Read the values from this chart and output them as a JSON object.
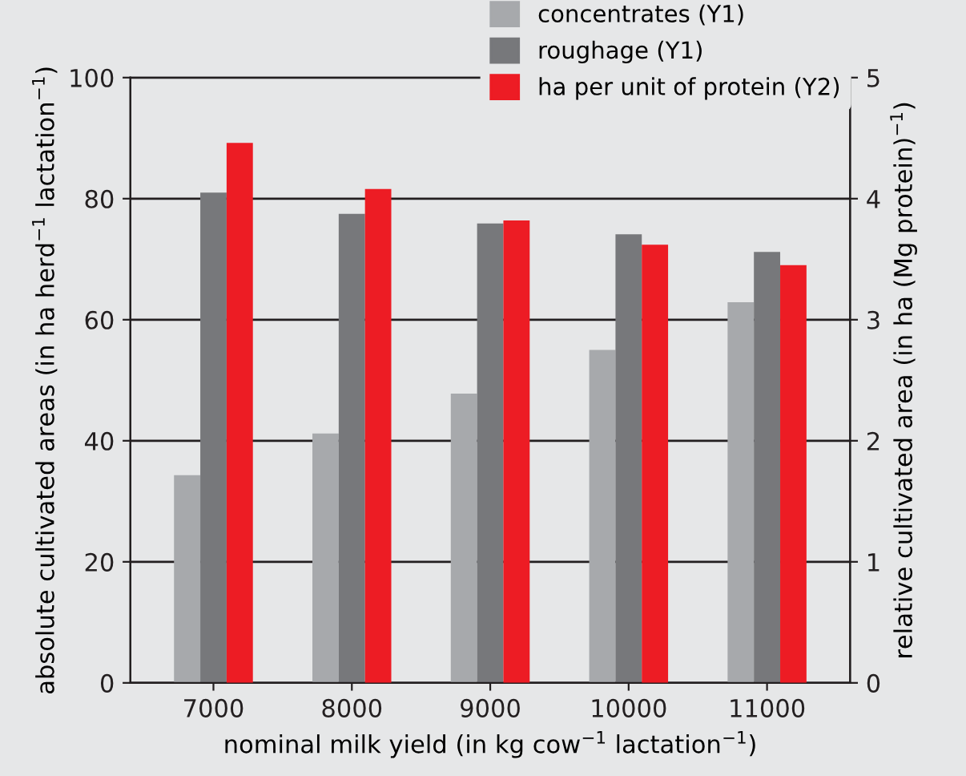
{
  "chart_data": {
    "type": "bar",
    "xlabel": "nominal milk yield (in kg cow$^{−1}$ lactation$^{−1}$)",
    "ylabel": "absolute cultivated areas (in ha herd$^{−1}$ lactation$^{−1}$)",
    "y2label": "relative cultivated area (in ha (Mg protein)$^{−1}$)",
    "categories": [
      "7000",
      "8000",
      "9000",
      "10000",
      "11000"
    ],
    "series": [
      {
        "name": "concentrates (Y1)",
        "color": "#a7a9ac",
        "values": [
          34.3,
          41.2,
          47.8,
          55.0,
          62.9
        ]
      },
      {
        "name": "roughage (Y1)",
        "color": "#77787b",
        "values": [
          81.0,
          77.5,
          75.9,
          74.1,
          71.2
        ]
      },
      {
        "name": "ha per unit of protein (Y2)",
        "color": "#ed1c24",
        "values": [
          4.46,
          4.08,
          3.82,
          3.62,
          3.45
        ],
        "axis": "y2"
      }
    ],
    "ylim": [
      0,
      100
    ],
    "yticks": [
      0,
      20,
      40,
      60,
      80,
      100
    ],
    "y2lim": [
      0,
      5
    ],
    "y2ticks": [
      0,
      1,
      2,
      3,
      4,
      5
    ],
    "grid": "y",
    "legend": "top right"
  }
}
